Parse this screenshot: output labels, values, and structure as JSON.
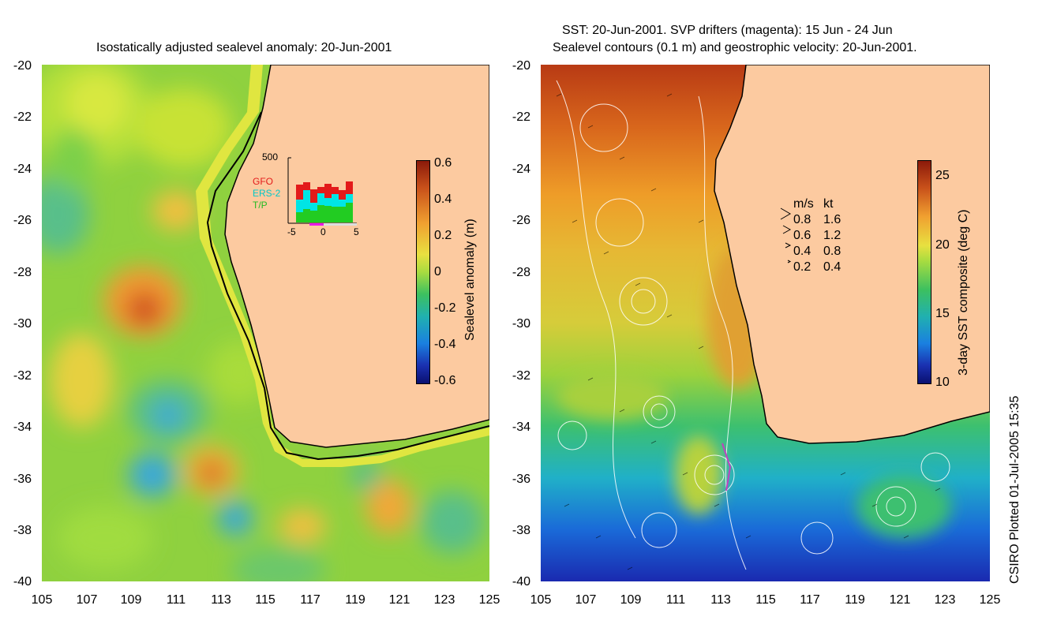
{
  "left_panel": {
    "title": "Isostatically adjusted sealevel anomaly: 20-Jun-2001",
    "y_ticks": [
      "-20",
      "-22",
      "-24",
      "-26",
      "-28",
      "-30",
      "-32",
      "-34",
      "-36",
      "-38",
      "-40"
    ],
    "x_ticks": [
      "105",
      "107",
      "109",
      "111",
      "113",
      "115",
      "117",
      "119",
      "121",
      "123",
      "125"
    ],
    "colorbar": {
      "label": "Sealevel anomaly (m)",
      "ticks": [
        "0.6",
        "0.4",
        "0.2",
        "0",
        "-0.2",
        "-0.4",
        "-0.6"
      ]
    },
    "inset": {
      "y_top": "500",
      "x_ticks": [
        "-5",
        "0",
        "5"
      ],
      "legend": [
        {
          "name": "GFO",
          "color": "#e31a1a"
        },
        {
          "name": "ERS-2",
          "color": "#00e5e5"
        },
        {
          "name": "T/P",
          "color": "#22cc22"
        }
      ]
    }
  },
  "right_panel": {
    "title_line1": "SST: 20-Jun-2001. SVP drifters (magenta): 15 Jun - 24 Jun",
    "title_line2": "Sealevel contours (0.1 m) and geostrophic velocity: 20-Jun-2001.",
    "y_ticks": [
      "-20",
      "-22",
      "-24",
      "-26",
      "-28",
      "-30",
      "-32",
      "-34",
      "-36",
      "-38",
      "-40"
    ],
    "x_ticks": [
      "105",
      "107",
      "109",
      "111",
      "113",
      "115",
      "117",
      "119",
      "121",
      "123",
      "125"
    ],
    "colorbar": {
      "label": "3-day SST composite (deg C)",
      "ticks": [
        "25",
        "20",
        "15",
        "10"
      ]
    },
    "velocity_legend": {
      "header_ms": "m/s",
      "header_kt": "kt",
      "rows": [
        {
          "ms": "0.8",
          "kt": "1.6"
        },
        {
          "ms": "0.6",
          "kt": "1.2"
        },
        {
          "ms": "0.4",
          "kt": "0.8"
        },
        {
          "ms": "0.2",
          "kt": "0.4"
        }
      ]
    }
  },
  "footer": {
    "credit": "CSIRO Plotted 01-Jul-2005 15:35"
  },
  "colors": {
    "land": "#fccaa0",
    "coast": "#000000"
  }
}
